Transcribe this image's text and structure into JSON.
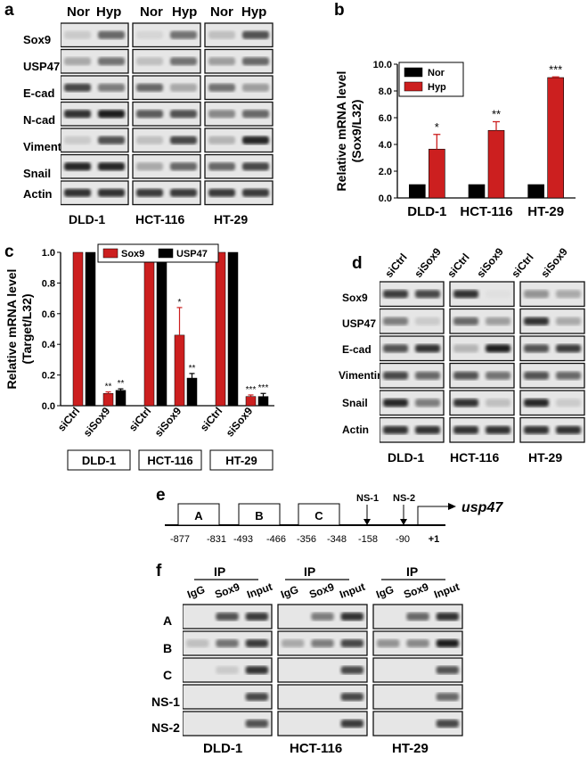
{
  "panel_labels": {
    "a": "a",
    "b": "b",
    "c": "c",
    "d": "d",
    "e": "e",
    "f": "f"
  },
  "panel_a": {
    "conditions": [
      "Nor",
      "Hyp"
    ],
    "proteins": [
      "Sox9",
      "USP47",
      "E-cad",
      "N-cad",
      "Vimentin",
      "Snail",
      "Actin"
    ],
    "cell_lines": [
      "DLD-1",
      "HCT-116",
      "HT-29"
    ]
  },
  "panel_d": {
    "conditions": [
      "siCtrl",
      "siSox9"
    ],
    "proteins": [
      "Sox9",
      "USP47",
      "E-cad",
      "Vimentin",
      "Snail",
      "Actin"
    ],
    "cell_lines": [
      "DLD-1",
      "HCT-116",
      "HT-29"
    ]
  },
  "panel_e": {
    "boxes": [
      "A",
      "B",
      "C"
    ],
    "sites": [
      "NS-1",
      "NS-2"
    ],
    "gene": "usp47",
    "positions": [
      "-877",
      "-831",
      "-493",
      "-466",
      "-356",
      "-348",
      "-158",
      "-90",
      "+1"
    ]
  },
  "panel_f": {
    "ip_label": "IP",
    "lanes": [
      "IgG",
      "Sox9",
      "Input"
    ],
    "regions": [
      "A",
      "B",
      "C",
      "NS-1",
      "NS-2"
    ],
    "cell_lines": [
      "DLD-1",
      "HCT-116",
      "HT-29"
    ]
  },
  "chart_data": [
    {
      "type": "bar",
      "panel": "b",
      "ylabel": "Relative mRNA level\n(Sox9/L32)",
      "ylim": [
        0,
        10.0
      ],
      "yticks": [
        "0.0",
        "2.0",
        "4.0",
        "6.0",
        "8.0",
        "10.0"
      ],
      "categories": [
        "DLD-1",
        "HCT-116",
        "HT-29"
      ],
      "series": [
        {
          "name": "Nor",
          "color": "#000000",
          "values": [
            1.0,
            1.0,
            1.0
          ],
          "errors": [
            0,
            0,
            0
          ]
        },
        {
          "name": "Hyp",
          "color": "#cc1f1f",
          "values": [
            3.65,
            5.05,
            9.0
          ],
          "errors": [
            1.1,
            0.65,
            0.05
          ],
          "significance": [
            "*",
            "**",
            "***"
          ]
        }
      ],
      "legend": "top-left"
    },
    {
      "type": "bar",
      "panel": "c",
      "ylabel": "Relative mRNA level\n(Target/L32)",
      "ylim": [
        0,
        1.0
      ],
      "yticks": [
        "0.0",
        "0.2",
        "0.4",
        "0.6",
        "0.8",
        "1.0"
      ],
      "groups": [
        "DLD-1",
        "HCT-116",
        "HT-29"
      ],
      "conditions": [
        "siCtrl",
        "siSox9"
      ],
      "series": [
        {
          "name": "Sox9",
          "color": "#cc1f1f",
          "values": [
            1.0,
            0.08,
            1.0,
            0.46,
            1.0,
            0.06
          ],
          "errors": [
            0,
            0.01,
            0,
            0.18,
            0,
            0.01
          ],
          "significance": [
            "",
            "**",
            "",
            "*",
            "",
            "***"
          ]
        },
        {
          "name": "USP47",
          "color": "#000000",
          "values": [
            1.0,
            0.1,
            1.0,
            0.18,
            1.0,
            0.06
          ],
          "errors": [
            0,
            0.01,
            0,
            0.03,
            0,
            0.02
          ],
          "significance": [
            "",
            "**",
            "",
            "**",
            "",
            "***"
          ]
        }
      ],
      "legend": "top"
    }
  ]
}
